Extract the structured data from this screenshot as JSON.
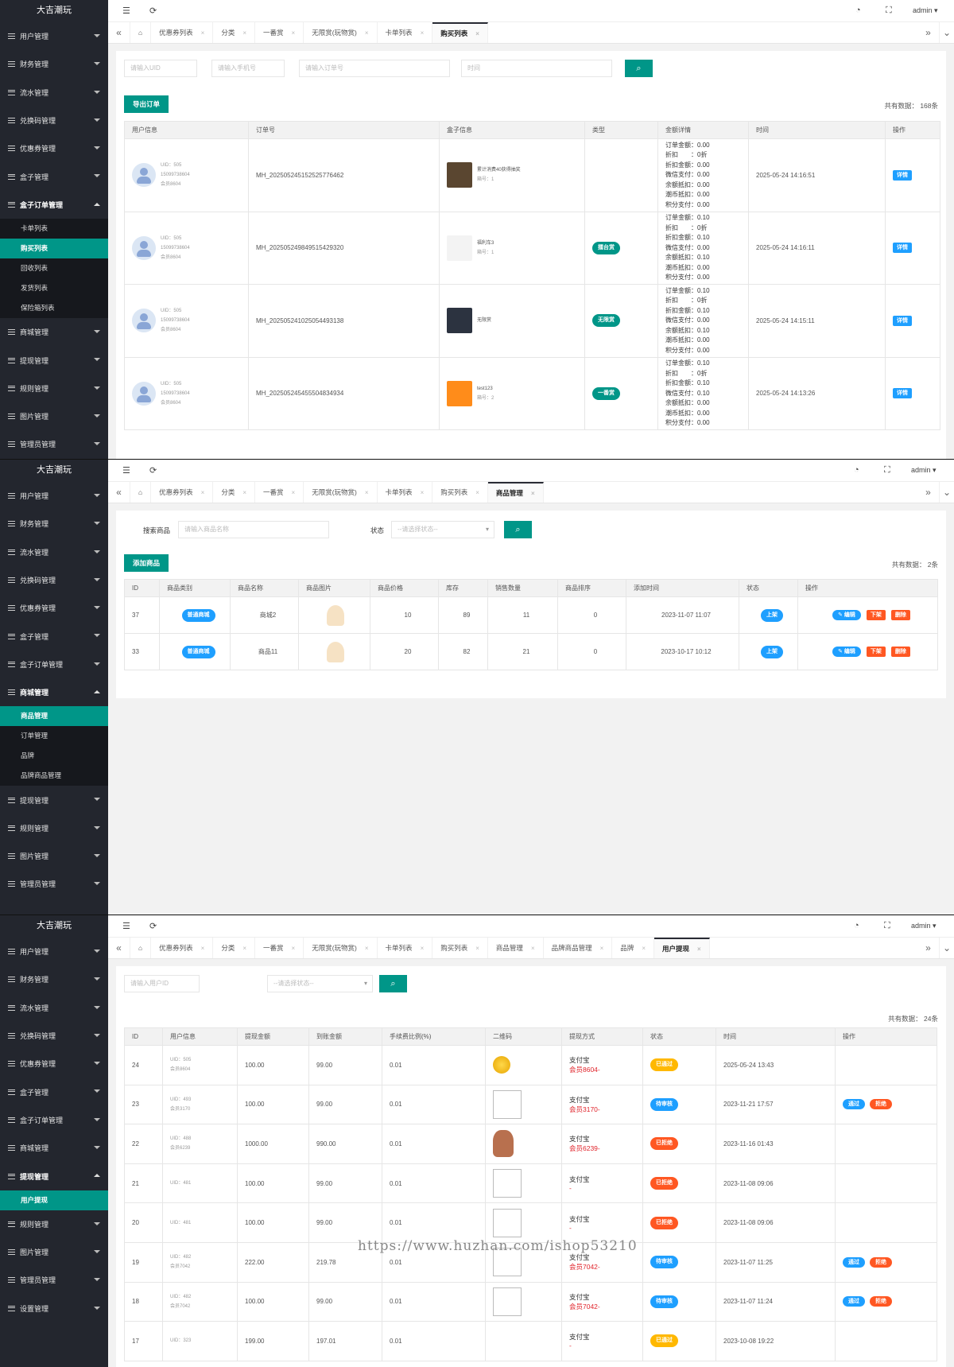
{
  "app": {
    "logo": "大吉潮玩",
    "user": "admin",
    "colors": {
      "primary": "#009688",
      "sidebar": "#23262e",
      "blue": "#1e9fff",
      "orange": "#ff5722",
      "yellow": "#ffb800"
    }
  },
  "panel1": {
    "sidebar": {
      "before": [
        "用户管理",
        "财务管理",
        "流水管理",
        "兑换码管理",
        "优惠券管理",
        "盒子管理"
      ],
      "open": "盒子订单管理",
      "sub": [
        "卡单列表",
        "购买列表",
        "回收列表",
        "发货列表",
        "保险箱列表"
      ],
      "active_sub": 1,
      "after": [
        "商城管理",
        "提现管理",
        "规则管理",
        "图片管理",
        "管理员管理"
      ]
    },
    "tabs": [
      "优惠券列表",
      "分类",
      "一番赏",
      "无限赏(玩物赏)",
      "卡单列表",
      "购买列表"
    ],
    "active_tab": 5,
    "filters": {
      "uid": "请输入UID",
      "phone": "请输入手机号",
      "order": "请输入订单号",
      "time": "时间"
    },
    "export_label": "导出订单",
    "total": "共有数据：  168条",
    "columns": [
      "用户信息",
      "订单号",
      "盒子信息",
      "类型",
      "金额详情",
      "时间",
      "操作"
    ],
    "rows": [
      {
        "uid": "UID：505",
        "phone": "15099738604",
        "member": "会员8604",
        "order": "MH_202505245152525776462",
        "box": "累计消费40获得抽奖",
        "box_no": "箱号：1",
        "type": "",
        "amounts": [
          "订单金额：0.00",
          "折扣　　：0折",
          "折扣金额：0.00",
          "微信支付：0.00",
          "余额抵扣：0.00",
          "潮币抵扣：0.00",
          "积分支付：0.00"
        ],
        "time": "2025-05-24 14:16:51",
        "action": "详情"
      },
      {
        "uid": "UID：505",
        "phone": "15099738604",
        "member": "会员8604",
        "order": "MH_202505249849515429320",
        "box": "福利车3",
        "box_no": "箱号：1",
        "type": "擂台赏",
        "amounts": [
          "订单金额：0.10",
          "折扣　　：0折",
          "折扣金额：0.10",
          "微信支付：0.00",
          "余额抵扣：0.10",
          "潮币抵扣：0.00",
          "积分支付：0.00"
        ],
        "time": "2025-05-24 14:16:11",
        "action": "详情"
      },
      {
        "uid": "UID：505",
        "phone": "15099738604",
        "member": "会员8604",
        "order": "MH_202505241025054493138",
        "box": "无限赏",
        "box_no": "",
        "type": "无限赏",
        "amounts": [
          "订单金额：0.10",
          "折扣　　：0折",
          "折扣金额：0.10",
          "微信支付：0.00",
          "余额抵扣：0.10",
          "潮币抵扣：0.00",
          "积分支付：0.00"
        ],
        "time": "2025-05-24 14:15:11",
        "action": "详情"
      },
      {
        "uid": "UID：505",
        "phone": "15099738604",
        "member": "会员8604",
        "order": "MH_202505245455504834934",
        "box": "test123",
        "box_no": "箱号：2",
        "type": "一番赏",
        "amounts": [
          "订单金额：0.10",
          "折扣　　：0折",
          "折扣金额：0.10",
          "微信支付：0.10",
          "余额抵扣：0.00",
          "潮币抵扣：0.00",
          "积分支付：0.00"
        ],
        "time": "2025-05-24 14:13:26",
        "action": "详情"
      }
    ]
  },
  "panel2": {
    "sidebar": {
      "before": [
        "用户管理",
        "财务管理",
        "流水管理",
        "兑换码管理",
        "优惠券管理",
        "盒子管理",
        "盒子订单管理"
      ],
      "open": "商城管理",
      "sub": [
        "商品管理",
        "订单管理",
        "品牌",
        "品牌商品管理"
      ],
      "active_sub": 0,
      "after": [
        "提现管理",
        "规则管理",
        "图片管理",
        "管理员管理"
      ]
    },
    "tabs": [
      "优惠券列表",
      "分类",
      "一番赏",
      "无限赏(玩物赏)",
      "卡单列表",
      "购买列表",
      "商品管理"
    ],
    "active_tab": 6,
    "search_label": "搜索商品",
    "search_placeholder": "请输入商品名称",
    "status_label": "状态",
    "status_placeholder": "--请选择状态--",
    "add_label": "添加商品",
    "total": "共有数据：  2条",
    "columns": [
      "ID",
      "商品类别",
      "商品名称",
      "商品图片",
      "商品价格",
      "库存",
      "销售数量",
      "商品排序",
      "添加时间",
      "状态",
      "操作"
    ],
    "rows": [
      {
        "id": "37",
        "category": "普通商城",
        "name": "商城2",
        "price": "10",
        "stock": "89",
        "sold": "11",
        "sort": "0",
        "time": "2023-11-07 11:07",
        "status": "上架",
        "edit": "编辑",
        "down": "下架",
        "del": "删除"
      },
      {
        "id": "33",
        "category": "普通商城",
        "name": "商品11",
        "price": "20",
        "stock": "82",
        "sold": "21",
        "sort": "0",
        "time": "2023-10-17 10:12",
        "status": "上架",
        "edit": "编辑",
        "down": "下架",
        "del": "删除"
      }
    ]
  },
  "panel3": {
    "sidebar": {
      "before": [
        "用户管理",
        "财务管理",
        "流水管理",
        "兑换码管理",
        "优惠券管理",
        "盒子管理",
        "盒子订单管理",
        "商城管理"
      ],
      "open": "提现管理",
      "sub": [
        "用户提现"
      ],
      "active_sub": 0,
      "after": [
        "规则管理",
        "图片管理",
        "管理员管理",
        "设置管理"
      ]
    },
    "tabs": [
      "优惠券列表",
      "分类",
      "一番赏",
      "无限赏(玩物赏)",
      "卡单列表",
      "购买列表",
      "商品管理",
      "品牌商品管理",
      "品牌",
      "用户提现"
    ],
    "active_tab": 9,
    "uid_placeholder": "请输入用户ID",
    "status_placeholder": "--请选择状态--",
    "total": "共有数据：  24条",
    "columns": [
      "ID",
      "用户信息",
      "提现金额",
      "到账金额",
      "手续费比例(%)",
      "二维码",
      "提现方式",
      "状态",
      "时间",
      "操作"
    ],
    "rows": [
      {
        "id": "24",
        "uid": "UID：505",
        "member": "会员8604",
        "amount": "100.00",
        "received": "99.00",
        "fee": "0.01",
        "qr": "coin",
        "method": "支付宝",
        "account": "会员8604-",
        "status": "已通过",
        "status_color": "#ffb800",
        "time": "2025-05-24 13:43",
        "pass": "",
        "reject": ""
      },
      {
        "id": "23",
        "uid": "UID：493",
        "member": "会员3170",
        "amount": "100.00",
        "received": "99.00",
        "fee": "0.01",
        "qr": "broken",
        "method": "支付宝",
        "account": "会员3170-",
        "status": "待审核",
        "status_color": "#1e9fff",
        "time": "2023-11-21 17:57",
        "pass": "通过",
        "reject": "拒绝"
      },
      {
        "id": "22",
        "uid": "UID：488",
        "member": "会员6239",
        "amount": "1000.00",
        "received": "990.00",
        "fee": "0.01",
        "qr": "toy",
        "method": "支付宝",
        "account": "会员6239-",
        "status": "已拒绝",
        "status_color": "#ff5722",
        "time": "2023-11-16 01:43",
        "pass": "",
        "reject": ""
      },
      {
        "id": "21",
        "uid": "UID：481",
        "member": "",
        "amount": "100.00",
        "received": "99.00",
        "fee": "0.01",
        "qr": "broken",
        "method": "支付宝",
        "account": "-",
        "status": "已拒绝",
        "status_color": "#ff5722",
        "time": "2023-11-08 09:06",
        "pass": "",
        "reject": ""
      },
      {
        "id": "20",
        "uid": "UID：481",
        "member": "",
        "amount": "100.00",
        "received": "99.00",
        "fee": "0.01",
        "qr": "broken",
        "method": "支付宝",
        "account": "-",
        "status": "已拒绝",
        "status_color": "#ff5722",
        "time": "2023-11-08 09:06",
        "pass": "",
        "reject": ""
      },
      {
        "id": "19",
        "uid": "UID：482",
        "member": "会员7042",
        "amount": "222.00",
        "received": "219.78",
        "fee": "0.01",
        "qr": "broken",
        "method": "支付宝",
        "account": "会员7042-",
        "status": "待审核",
        "status_color": "#1e9fff",
        "time": "2023-11-07 11:25",
        "pass": "通过",
        "reject": "拒绝"
      },
      {
        "id": "18",
        "uid": "UID：482",
        "member": "会员7042",
        "amount": "100.00",
        "received": "99.00",
        "fee": "0.01",
        "qr": "broken",
        "method": "支付宝",
        "account": "会员7042-",
        "status": "待审核",
        "status_color": "#1e9fff",
        "time": "2023-11-07 11:24",
        "pass": "通过",
        "reject": "拒绝"
      },
      {
        "id": "17",
        "uid": "UID：323",
        "member": "",
        "amount": "199.00",
        "received": "197.01",
        "fee": "0.01",
        "qr": "",
        "method": "支付宝",
        "account": "-",
        "status": "已通过",
        "status_color": "#ffb800",
        "time": "2023-10-08 19:22",
        "pass": "",
        "reject": ""
      }
    ]
  },
  "watermark": "https://www.huzhan.com/ishop53210"
}
